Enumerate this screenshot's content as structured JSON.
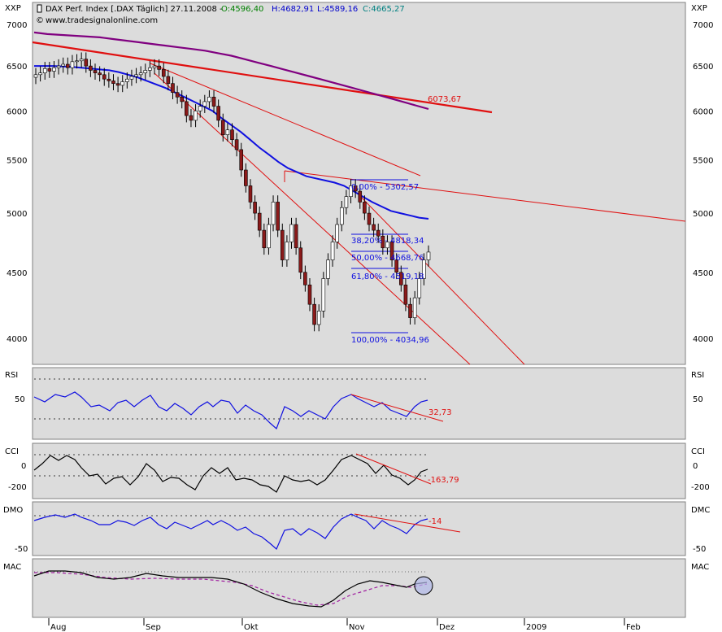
{
  "header": {
    "instrument": "DAX Perf. Index [.DAX  Täglich] 27.11.2008 -",
    "open": "O:4596,40",
    "high": "H:4682,91",
    "low": "L:4589,16",
    "close": "C:4665,27",
    "source": "www.tradesignalonline.com"
  },
  "colors": {
    "panel_bg": "#dcdcdc",
    "up_candle": "#ffffff",
    "down_candle": "#8b1a1a",
    "sma_blue": "#1010e0",
    "sma_purple": "#800080",
    "trend_red": "#e01010",
    "open_green": "#008000",
    "high_blue": "#0000cc",
    "low_blue": "#0000cc",
    "close_teal": "#008080"
  },
  "chart_data": [
    {
      "type": "candlestick",
      "ylabel": "XXP",
      "y_ticks": [
        7000,
        6500,
        6000,
        5500,
        5000,
        4500,
        4000
      ],
      "y_scale": "log",
      "x_ticks": [
        "Aug",
        "Sep",
        "Okt",
        "Nov",
        "Dez",
        "2009",
        "Feb"
      ],
      "annotations": [
        {
          "text": "6073,67",
          "y": 6073.67
        },
        {
          "text": "0,00% - 5302,57",
          "y": 5302.57
        },
        {
          "text": "38,20% - 4818,34",
          "y": 4818.34
        },
        {
          "text": "50,00% - 4668,76",
          "y": 4668.76
        },
        {
          "text": "61,80% - 4519,18",
          "y": 4519.18
        },
        {
          "text": "100,00% - 4034,96",
          "y": 4034.96
        }
      ],
      "close_series": [
        6400,
        6420,
        6470,
        6440,
        6480,
        6500,
        6520,
        6480,
        6550,
        6560,
        6580,
        6500,
        6450,
        6420,
        6400,
        6350,
        6330,
        6300,
        6280,
        6320,
        6350,
        6380,
        6400,
        6420,
        6450,
        6480,
        6500,
        6460,
        6380,
        6300,
        6200,
        6150,
        6100,
        5950,
        5900,
        6000,
        6050,
        6100,
        6150,
        6050,
        5900,
        5750,
        5800,
        5700,
        5600,
        5400,
        5250,
        5100,
        5000,
        4850,
        4700,
        4900,
        5100,
        4850,
        4600,
        4750,
        4900,
        4700,
        4500,
        4400,
        4250,
        4100,
        4200,
        4450,
        4600,
        4750,
        4900,
        5050,
        5150,
        5250,
        5200,
        5100,
        5000,
        4900,
        4850,
        4800,
        4700,
        4750,
        4600,
        4500,
        4400,
        4250,
        4150,
        4300,
        4450,
        4600,
        4665
      ],
      "sma_blue": [
        6500,
        6500,
        6500,
        6495,
        6490,
        6480,
        6470,
        6460,
        6450,
        6430,
        6400,
        6370,
        6330,
        6290,
        6250,
        6200,
        6150,
        6100,
        6050,
        6000,
        5920,
        5850,
        5780,
        5700,
        5620,
        5550,
        5480,
        5420,
        5380,
        5340,
        5320,
        5300,
        5280,
        5250,
        5200,
        5150,
        5100,
        5060,
        5020,
        5000,
        4980,
        4960,
        4950
      ],
      "sma_purple": [
        6900,
        6880,
        6870,
        6860,
        6850,
        6840,
        6820,
        6800,
        6780,
        6760,
        6740,
        6720,
        6700,
        6680,
        6650,
        6620,
        6580,
        6540,
        6500,
        6460,
        6420,
        6380,
        6340,
        6300,
        6260,
        6220,
        6180,
        6140,
        6100,
        6060,
        6020
      ]
    },
    {
      "type": "line",
      "ylabel": "RSI",
      "y_ticks": [
        50
      ],
      "annotations": [
        {
          "text": "32,73"
        }
      ]
    },
    {
      "type": "line",
      "ylabel": "CCI",
      "y_ticks": [
        0,
        -200
      ],
      "annotations": [
        {
          "text": "-163,79"
        }
      ]
    },
    {
      "type": "line",
      "ylabel": "DMO",
      "ylabel_right": "DMC",
      "y_ticks": [
        -50
      ],
      "annotations": [
        {
          "text": "-14"
        }
      ]
    },
    {
      "type": "line",
      "ylabel": "MAC",
      "y_ticks": []
    }
  ]
}
